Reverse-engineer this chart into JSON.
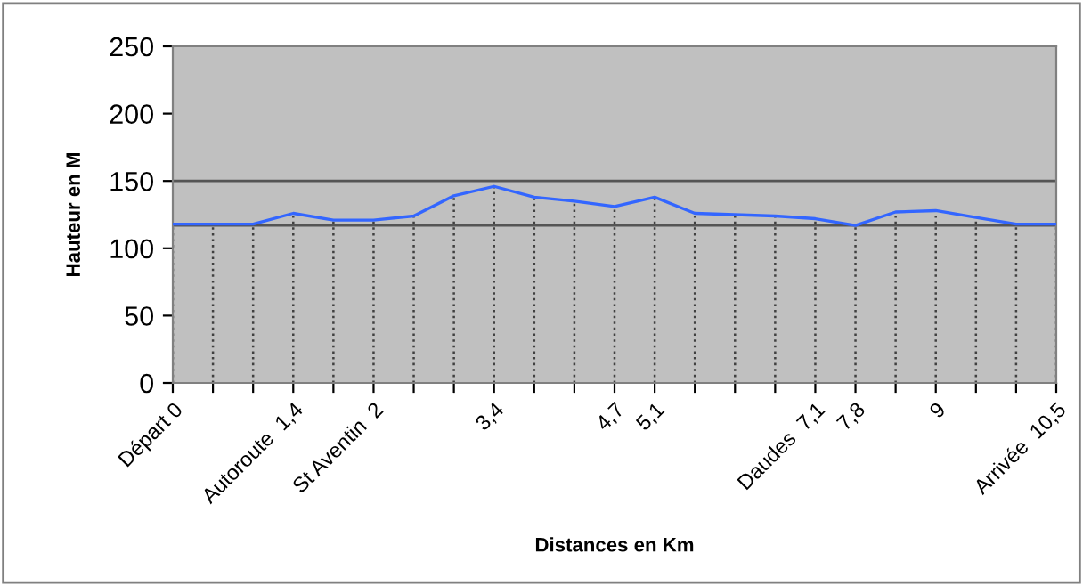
{
  "chart_data": {
    "type": "line",
    "xlabel": "Distances en Km",
    "ylabel": "Hauteur en M",
    "categories": [
      "Départ 0",
      null,
      null,
      "Autoroute  1,4",
      null,
      "St Aventin  2",
      null,
      null,
      "3,4",
      null,
      null,
      "4,7",
      "5,1",
      null,
      null,
      null,
      "Daudes  7,1",
      "7,8",
      null,
      "9",
      null,
      null,
      "Arrivée  10,5"
    ],
    "series": [
      {
        "color": "#3366ff",
        "values": [
          118,
          118,
          118,
          126,
          121,
          121,
          124,
          139,
          146,
          138,
          135,
          131,
          138,
          126,
          125,
          124,
          122,
          117,
          127,
          128,
          123,
          118,
          118
        ],
        "errors": [
          [
            0,
            118
          ],
          [
            0,
            118
          ],
          [
            0,
            118
          ],
          [
            0,
            126
          ],
          [
            0,
            121
          ],
          [
            0,
            121
          ],
          [
            0,
            124
          ],
          [
            0,
            139
          ],
          [
            0,
            146
          ],
          [
            0,
            138
          ],
          [
            0,
            135
          ],
          [
            0,
            131
          ],
          [
            0,
            138
          ],
          [
            0,
            126
          ],
          [
            0,
            125
          ],
          [
            0,
            124
          ],
          [
            0,
            122
          ],
          [
            0,
            117
          ],
          [
            0,
            127
          ],
          [
            0,
            128
          ],
          [
            0,
            123
          ],
          [
            0,
            118
          ],
          [
            0,
            118
          ]
        ]
      }
    ],
    "ylim": [
      0,
      250
    ],
    "yticks": [
      0,
      50,
      100,
      150,
      200,
      250
    ],
    "grid": false,
    "legend": false,
    "marker": "none",
    "line_style": "solid",
    "ref_lines": [
      {
        "axis": "y",
        "value": 150,
        "color": "#555555"
      },
      {
        "axis": "y",
        "value": 117,
        "color": "#555555"
      }
    ]
  }
}
